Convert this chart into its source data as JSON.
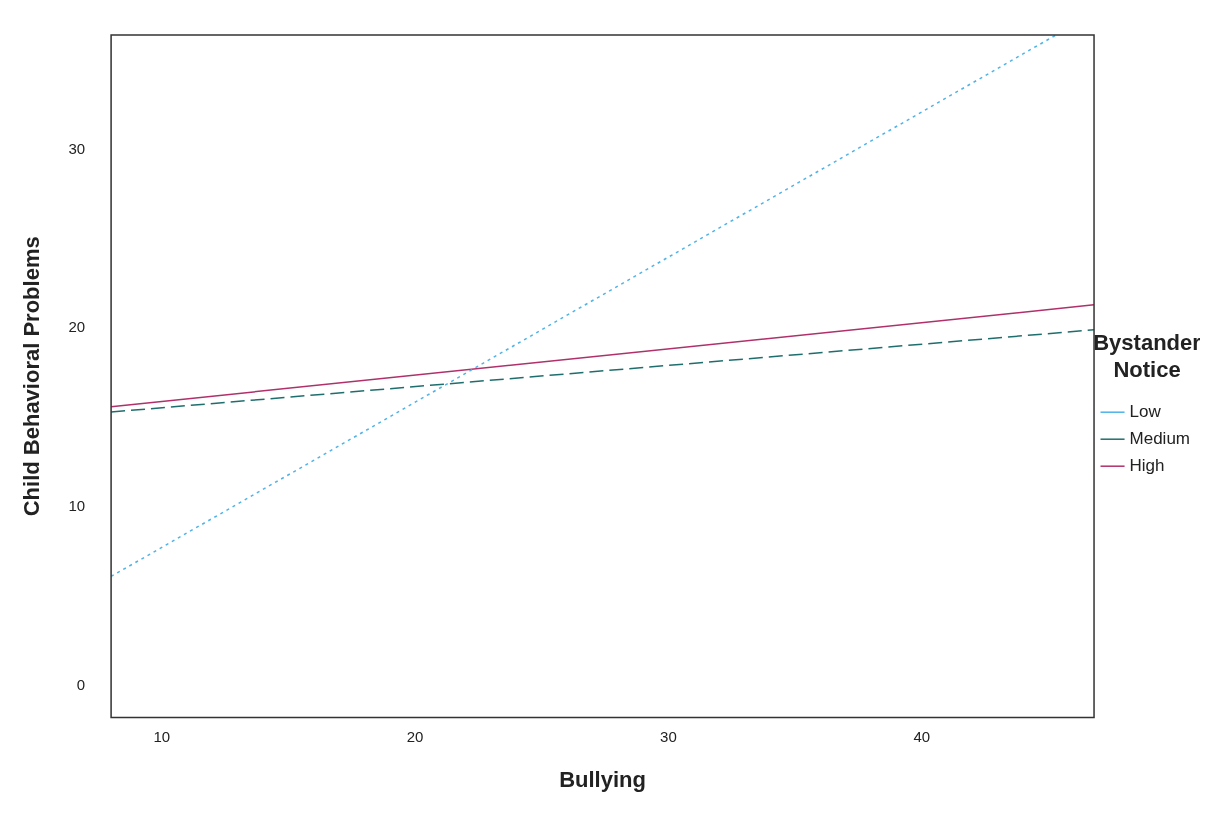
{
  "chart_data": {
    "type": "line",
    "xlabel": "Bullying",
    "ylabel": "Child Behavioral Problems",
    "legend_title": "Bystander Notice",
    "legend": "right",
    "xlim": [
      8,
      46.8
    ],
    "xticks": [
      10,
      20,
      30,
      40
    ],
    "ylim": [
      -1.8,
      36.4
    ],
    "yticks": [
      0,
      10,
      20,
      30
    ],
    "grid": false,
    "marker": "none",
    "series": [
      {
        "name": "Low",
        "color": "#4fb3e8",
        "line_style": "dotted",
        "x": [
          8,
          45.3
        ],
        "values": [
          6.1,
          36.4
        ]
      },
      {
        "name": "Medium",
        "color": "#1f6e6e",
        "line_style": "dashed",
        "x": [
          8,
          46.8
        ],
        "values": [
          15.3,
          19.9
        ]
      },
      {
        "name": "High",
        "color": "#b0306a",
        "line_style": "solid",
        "x": [
          8,
          46.8
        ],
        "values": [
          15.6,
          21.3
        ]
      }
    ]
  }
}
